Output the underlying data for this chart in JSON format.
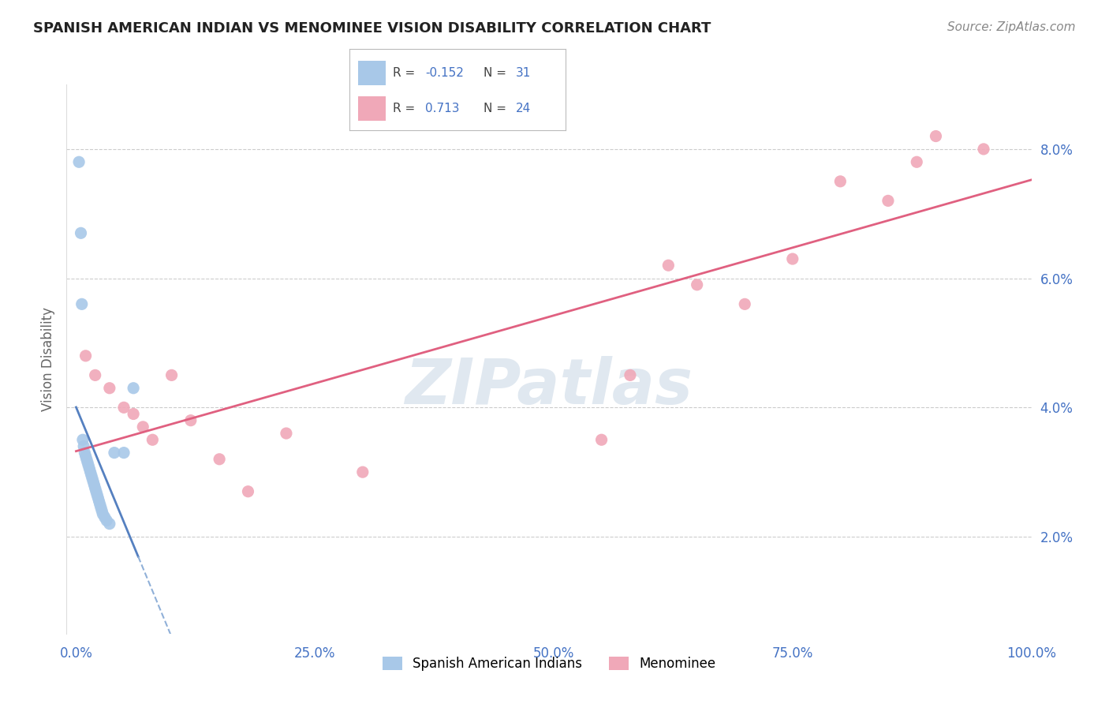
{
  "title": "SPANISH AMERICAN INDIAN VS MENOMINEE VISION DISABILITY CORRELATION CHART",
  "source": "Source: ZipAtlas.com",
  "xlabel_vals": [
    0.0,
    25.0,
    50.0,
    75.0,
    100.0
  ],
  "ylabel": "Vision Disability",
  "ylabel_vals": [
    2.0,
    4.0,
    6.0,
    8.0
  ],
  "ylim": [
    0.5,
    9.0
  ],
  "xlim": [
    -1.0,
    100.0
  ],
  "blue_R": -0.152,
  "blue_N": 31,
  "pink_R": 0.713,
  "pink_N": 24,
  "blue_color": "#a8c8e8",
  "pink_color": "#f0a8b8",
  "blue_line_color": "#5580c0",
  "pink_line_color": "#e06080",
  "blue_dashed_color": "#90b0d8",
  "blue_points_x": [
    0.3,
    0.5,
    0.6,
    0.7,
    0.8,
    0.9,
    1.0,
    1.1,
    1.2,
    1.3,
    1.4,
    1.5,
    1.6,
    1.7,
    1.8,
    1.9,
    2.0,
    2.1,
    2.2,
    2.3,
    2.4,
    2.5,
    2.6,
    2.7,
    2.8,
    3.0,
    3.2,
    3.5,
    4.0,
    5.0,
    6.0
  ],
  "blue_points_y": [
    7.8,
    6.7,
    5.6,
    3.5,
    3.4,
    3.3,
    3.25,
    3.2,
    3.15,
    3.1,
    3.05,
    3.0,
    2.95,
    2.9,
    2.85,
    2.8,
    2.75,
    2.7,
    2.65,
    2.6,
    2.55,
    2.5,
    2.45,
    2.4,
    2.35,
    2.3,
    2.25,
    2.2,
    3.3,
    3.3,
    4.3
  ],
  "pink_points_x": [
    1.0,
    2.0,
    3.5,
    5.0,
    6.0,
    7.0,
    8.0,
    10.0,
    12.0,
    15.0,
    18.0,
    22.0,
    30.0,
    55.0,
    58.0,
    62.0,
    65.0,
    70.0,
    75.0,
    80.0,
    85.0,
    88.0,
    90.0,
    95.0
  ],
  "pink_points_y": [
    4.8,
    4.5,
    4.3,
    4.0,
    3.9,
    3.7,
    3.5,
    4.5,
    3.8,
    3.2,
    2.7,
    3.6,
    3.0,
    3.5,
    4.5,
    6.2,
    5.9,
    5.6,
    6.3,
    7.5,
    7.2,
    7.8,
    8.2,
    8.0
  ],
  "blue_line_x_start": 0.0,
  "blue_line_x_end": 6.5,
  "blue_dash_x_end": 22.0,
  "pink_line_x_start": 0.0,
  "pink_line_x_end": 100.0
}
